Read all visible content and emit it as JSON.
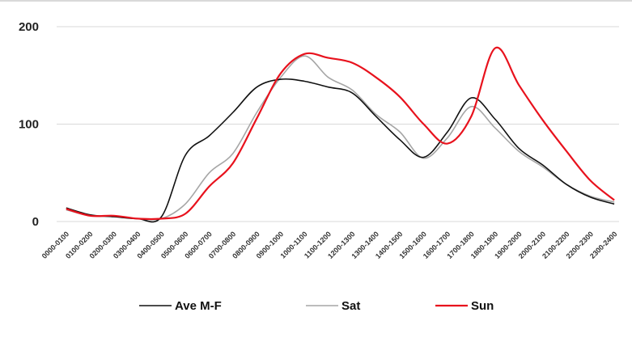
{
  "chart_data": {
    "type": "line",
    "title": "",
    "xlabel": "",
    "ylabel": "",
    "ylim": [
      0,
      200
    ],
    "yticks": [
      "200",
      "100",
      "0"
    ],
    "grid": true,
    "legend_position": "bottom",
    "categories": [
      "0000-0100",
      "0100-0200",
      "0200-0300",
      "0300-0400",
      "0400-0500",
      "0500-0600",
      "0600-0700",
      "0700-0800",
      "0800-0900",
      "0900-1000",
      "1000-1100",
      "1100-1200",
      "1200-1300",
      "1300-1400",
      "1400-1500",
      "1500-1600",
      "1600-1700",
      "1700-1800",
      "1800-1900",
      "1900-2000",
      "2000-2100",
      "2100-2200",
      "2200-2300",
      "2300-2400"
    ],
    "series": [
      {
        "name": "Ave M-F",
        "color": "#111111",
        "values": [
          14,
          7,
          5,
          3,
          5,
          68,
          88,
          112,
          138,
          146,
          144,
          138,
          132,
          108,
          84,
          66,
          92,
          127,
          105,
          75,
          58,
          38,
          25,
          18
        ]
      },
      {
        "name": "Sat",
        "color": "#a6a6a6",
        "values": [
          12,
          6,
          5,
          3,
          3,
          18,
          50,
          70,
          112,
          148,
          170,
          148,
          135,
          110,
          92,
          65,
          86,
          118,
          96,
          72,
          56,
          38,
          26,
          20
        ]
      },
      {
        "name": "Sun",
        "color": "#e8121d",
        "values": [
          13,
          6,
          6,
          3,
          3,
          8,
          36,
          60,
          106,
          152,
          172,
          168,
          163,
          148,
          128,
          100,
          80,
          108,
          178,
          140,
          104,
          72,
          42,
          22
        ]
      }
    ]
  }
}
